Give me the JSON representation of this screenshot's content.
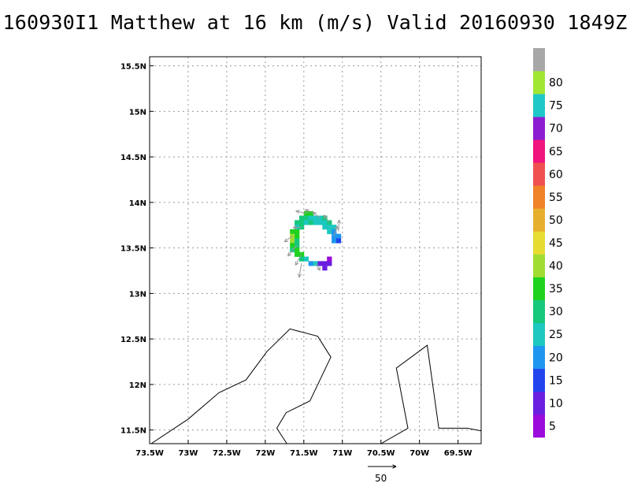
{
  "title": "160930I1 Matthew at 16 km (m/s) Valid 20160930 1849Z",
  "map": {
    "lon_range": [
      -73.5,
      -69.2
    ],
    "lat_range": [
      11.35,
      15.6
    ],
    "lon_ticks": [
      {
        "v": -73.5,
        "label": "73.5W"
      },
      {
        "v": -73.0,
        "label": "73W"
      },
      {
        "v": -72.5,
        "label": "72.5W"
      },
      {
        "v": -72.0,
        "label": "72W"
      },
      {
        "v": -71.5,
        "label": "71.5W"
      },
      {
        "v": -71.0,
        "label": "71W"
      },
      {
        "v": -70.5,
        "label": "70.5W"
      },
      {
        "v": -70.0,
        "label": "70W"
      },
      {
        "v": -69.5,
        "label": "69.5W"
      }
    ],
    "lat_ticks": [
      {
        "v": 11.5,
        "label": "11.5N"
      },
      {
        "v": 12.0,
        "label": "12N"
      },
      {
        "v": 12.5,
        "label": "12.5N"
      },
      {
        "v": 13.0,
        "label": "13N"
      },
      {
        "v": 13.5,
        "label": "13.5N"
      },
      {
        "v": 14.0,
        "label": "14N"
      },
      {
        "v": 14.5,
        "label": "14.5N"
      },
      {
        "v": 15.0,
        "label": "15N"
      },
      {
        "v": 15.5,
        "label": "15.5N"
      }
    ],
    "grid": true,
    "coastlines": [
      [
        [
          -73.48,
          11.35
        ],
        [
          -73.0,
          11.62
        ],
        [
          -72.6,
          11.91
        ],
        [
          -72.25,
          12.05
        ],
        [
          -71.98,
          12.36
        ],
        [
          -71.68,
          12.61
        ],
        [
          -71.32,
          12.53
        ],
        [
          -71.15,
          12.3
        ],
        [
          -71.42,
          11.82
        ],
        [
          -71.73,
          11.69
        ],
        [
          -71.85,
          11.52
        ],
        [
          -71.72,
          11.35
        ]
      ],
      [
        [
          -70.5,
          11.35
        ],
        [
          -70.15,
          11.52
        ],
        [
          -70.3,
          12.18
        ],
        [
          -69.9,
          12.43
        ],
        [
          -69.75,
          11.52
        ],
        [
          -69.38,
          11.52
        ],
        [
          -69.2,
          11.49
        ]
      ]
    ],
    "wind_cells": [
      {
        "lon": -71.47,
        "lat": 13.88,
        "v": 31
      },
      {
        "lon": -71.41,
        "lat": 13.88,
        "v": 32
      },
      {
        "lon": -71.53,
        "lat": 13.83,
        "v": 27
      },
      {
        "lon": -71.47,
        "lat": 13.83,
        "v": 26
      },
      {
        "lon": -71.41,
        "lat": 13.83,
        "v": 25
      },
      {
        "lon": -71.35,
        "lat": 13.83,
        "v": 24
      },
      {
        "lon": -71.29,
        "lat": 13.83,
        "v": 25
      },
      {
        "lon": -71.23,
        "lat": 13.83,
        "v": 27
      },
      {
        "lon": -71.59,
        "lat": 13.78,
        "v": 29
      },
      {
        "lon": -71.53,
        "lat": 13.78,
        "v": 27
      },
      {
        "lon": -71.47,
        "lat": 13.78,
        "v": 24
      },
      {
        "lon": -71.41,
        "lat": 13.78,
        "v": 26
      },
      {
        "lon": -71.35,
        "lat": 13.78,
        "v": 23
      },
      {
        "lon": -71.29,
        "lat": 13.78,
        "v": 24
      },
      {
        "lon": -71.23,
        "lat": 13.78,
        "v": 24
      },
      {
        "lon": -71.17,
        "lat": 13.78,
        "v": 28
      },
      {
        "lon": -71.59,
        "lat": 13.73,
        "v": 25
      },
      {
        "lon": -71.53,
        "lat": 13.73,
        "v": 30
      },
      {
        "lon": -71.23,
        "lat": 13.73,
        "v": 25
      },
      {
        "lon": -71.17,
        "lat": 13.73,
        "v": 23
      },
      {
        "lon": -71.11,
        "lat": 13.73,
        "v": 22
      },
      {
        "lon": -71.65,
        "lat": 13.68,
        "v": 35
      },
      {
        "lon": -71.59,
        "lat": 13.68,
        "v": 32
      },
      {
        "lon": -71.17,
        "lat": 13.68,
        "v": 21
      },
      {
        "lon": -71.11,
        "lat": 13.68,
        "v": 18
      },
      {
        "lon": -71.65,
        "lat": 13.63,
        "v": 38
      },
      {
        "lon": -71.59,
        "lat": 13.63,
        "v": 33
      },
      {
        "lon": -71.11,
        "lat": 13.63,
        "v": 19
      },
      {
        "lon": -71.05,
        "lat": 13.63,
        "v": 16
      },
      {
        "lon": -71.65,
        "lat": 13.58,
        "v": 36
      },
      {
        "lon": -71.59,
        "lat": 13.58,
        "v": 30
      },
      {
        "lon": -71.11,
        "lat": 13.58,
        "v": 17
      },
      {
        "lon": -71.05,
        "lat": 13.58,
        "v": 15
      },
      {
        "lon": -71.65,
        "lat": 13.53,
        "v": 33
      },
      {
        "lon": -71.59,
        "lat": 13.53,
        "v": 28
      },
      {
        "lon": -71.65,
        "lat": 13.48,
        "v": 30
      },
      {
        "lon": -71.59,
        "lat": 13.48,
        "v": 32
      },
      {
        "lon": -71.59,
        "lat": 13.43,
        "v": 34
      },
      {
        "lon": -71.53,
        "lat": 13.43,
        "v": 31
      },
      {
        "lon": -71.53,
        "lat": 13.38,
        "v": 27
      },
      {
        "lon": -71.47,
        "lat": 13.38,
        "v": 24
      },
      {
        "lon": -71.41,
        "lat": 13.33,
        "v": 19
      },
      {
        "lon": -71.35,
        "lat": 13.33,
        "v": 22
      },
      {
        "lon": -71.29,
        "lat": 13.33,
        "v": 8
      },
      {
        "lon": -71.23,
        "lat": 13.33,
        "v": 7
      },
      {
        "lon": -71.17,
        "lat": 13.33,
        "v": 6
      },
      {
        "lon": -71.17,
        "lat": 13.38,
        "v": 3
      },
      {
        "lon": -71.23,
        "lat": 13.28,
        "v": 9
      }
    ],
    "wind_vectors": [
      {
        "lon": -71.47,
        "lat": 13.88,
        "u": -17,
        "v": 6
      },
      {
        "lon": -71.35,
        "lat": 13.88,
        "u": -17,
        "v": 9
      },
      {
        "lon": -71.29,
        "lat": 13.83,
        "u": -12,
        "v": 15
      },
      {
        "lon": -71.17,
        "lat": 13.78,
        "u": -9,
        "v": 19
      },
      {
        "lon": -71.53,
        "lat": 13.73,
        "u": -14,
        "v": -2
      },
      {
        "lon": -71.65,
        "lat": 13.63,
        "u": -13,
        "v": -15
      },
      {
        "lon": -71.59,
        "lat": 13.53,
        "u": -15,
        "v": -28
      },
      {
        "lon": -71.53,
        "lat": 13.43,
        "u": -10,
        "v": -28
      },
      {
        "lon": -71.53,
        "lat": 13.33,
        "u": -4,
        "v": -36
      },
      {
        "lon": -71.35,
        "lat": 13.33,
        "u": 8,
        "v": -18
      },
      {
        "lon": -71.11,
        "lat": 13.63,
        "u": 6,
        "v": 26
      },
      {
        "lon": -71.05,
        "lat": 13.68,
        "u": 1,
        "v": 30
      }
    ],
    "reference_vector": {
      "label": "50",
      "speed": 50
    }
  },
  "colorbar": {
    "bins": [
      {
        "label": "5",
        "max": 5,
        "color": "#9a0bdc"
      },
      {
        "label": "10",
        "max": 10,
        "color": "#6a1ee0"
      },
      {
        "label": "15",
        "max": 15,
        "color": "#2244ee"
      },
      {
        "label": "20",
        "max": 20,
        "color": "#1e96f0"
      },
      {
        "label": "25",
        "max": 25,
        "color": "#1cc8c0"
      },
      {
        "label": "30",
        "max": 30,
        "color": "#16c87c"
      },
      {
        "label": "35",
        "max": 35,
        "color": "#1ed21e"
      },
      {
        "label": "40",
        "max": 40,
        "color": "#a0dc32"
      },
      {
        "label": "45",
        "max": 45,
        "color": "#e6dc32"
      },
      {
        "label": "50",
        "max": 50,
        "color": "#e6af2d"
      },
      {
        "label": "55",
        "max": 55,
        "color": "#f08228"
      },
      {
        "label": "60",
        "max": 60,
        "color": "#f05050"
      },
      {
        "label": "65",
        "max": 65,
        "color": "#f0147d"
      },
      {
        "label": "70",
        "max": 70,
        "color": "#8c1ed2"
      },
      {
        "label": "75",
        "max": 75,
        "color": "#1ec8c8"
      },
      {
        "label": "80",
        "max": 80,
        "color": "#a0e632"
      },
      {
        "label": "",
        "max": 999,
        "color": "#a8a8a8"
      }
    ]
  }
}
